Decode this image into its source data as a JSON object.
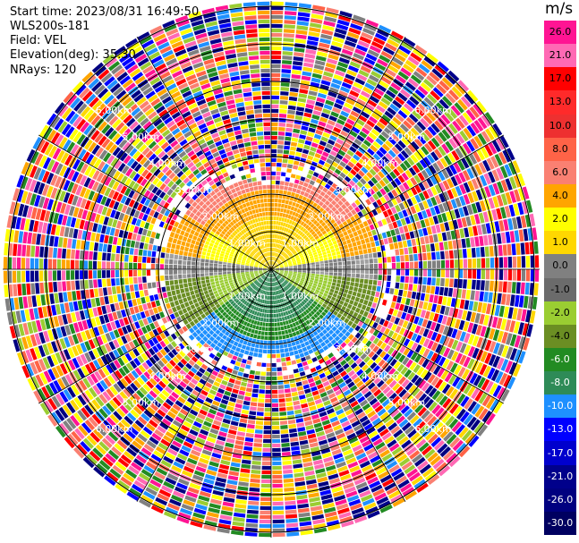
{
  "info": {
    "start_time": "Start time: 2023/08/31 16:49:50",
    "instrument": "WLS200s-181",
    "field": "Field: VEL",
    "elevation": "Elevation(deg): 35.30",
    "nrays": "NRays: 120"
  },
  "colorbar": {
    "unit": "m/s",
    "ticks": [
      "26.0",
      "21.0",
      "17.0",
      "13.0",
      "10.0",
      "8.0",
      "6.0",
      "4.0",
      "2.0",
      "1.0",
      "0.0",
      "-1.0",
      "-2.0",
      "-4.0",
      "-6.0",
      "-8.0",
      "-10.0",
      "-13.0",
      "-17.0",
      "-21.0",
      "-26.0",
      "-30.0"
    ],
    "colors": [
      "#ff1493",
      "#ff69b4",
      "#ff0000",
      "#ff2a2a",
      "#ee3030",
      "#ff6347",
      "#fa8072",
      "#ffa500",
      "#ffff00",
      "#ffd700",
      "#808080",
      "#6b6b6b",
      "#9acd32",
      "#6b8e23",
      "#228b22",
      "#2e8b57",
      "#1e90ff",
      "#0000ff",
      "#0000cd",
      "#00008b",
      "#000080",
      "#000060"
    ]
  },
  "range_labels": [
    "1.00km",
    "2.00km",
    "3.00km",
    "4.00km",
    "5.00km",
    "6.00km"
  ],
  "noise_colors": [
    "#ff1493",
    "#ff69b4",
    "#ff0000",
    "#ffa500",
    "#ffff00",
    "#ffd700",
    "#808080",
    "#9acd32",
    "#228b22",
    "#1e90ff",
    "#0000ff",
    "#00008b",
    "#000080",
    "#ff6347",
    "#fa8072"
  ]
}
